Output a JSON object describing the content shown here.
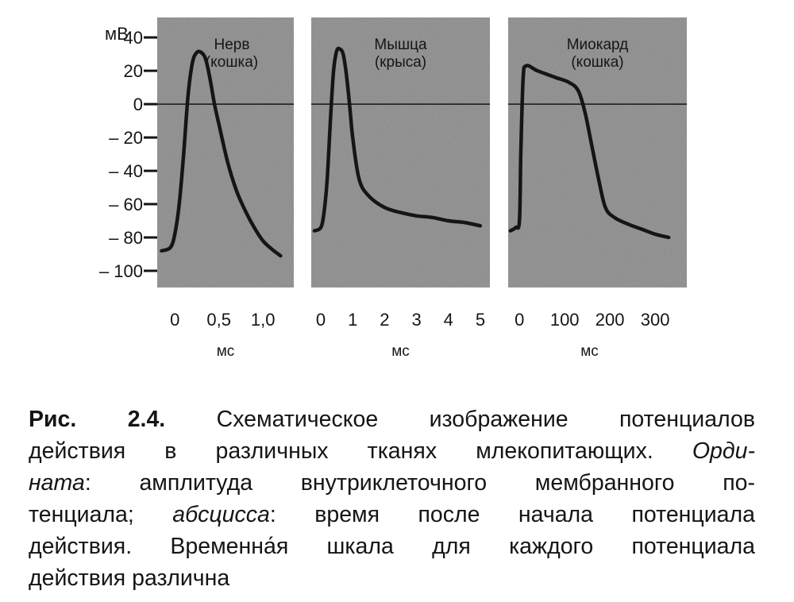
{
  "chart_data": {
    "type": "line",
    "y_unit": "мВ",
    "y_ticks": [
      "40",
      "20",
      "0",
      "– 20",
      "– 40",
      "– 60",
      "– 80",
      "– 100"
    ],
    "y_tick_values": [
      40,
      20,
      0,
      -20,
      -40,
      -60,
      -80,
      -100
    ],
    "ylim": [
      -110,
      52
    ],
    "grid": false,
    "panels": [
      {
        "title_line1": "Нерв",
        "title_line2": "(кошка)",
        "xlabel": "мс",
        "x_ticks": [
          "0",
          "0,5",
          "1,0"
        ],
        "x_tick_values": [
          0,
          0.5,
          1.0
        ],
        "xlim": [
          -0.2,
          1.35
        ],
        "series": [
          {
            "x": [
              -0.15,
              -0.05,
              0.0,
              0.05,
              0.1,
              0.15,
              0.2,
              0.25,
              0.3,
              0.35,
              0.4,
              0.45,
              0.5,
              0.6,
              0.7,
              0.8,
              0.9,
              1.0,
              1.1,
              1.2
            ],
            "y": [
              -88,
              -86,
              -78,
              -60,
              -30,
              5,
              25,
              31,
              31,
              27,
              15,
              0,
              -12,
              -35,
              -52,
              -64,
              -74,
              -82,
              -87,
              -91
            ]
          }
        ]
      },
      {
        "title_line1": "Мышца",
        "title_line2": "(крыса)",
        "xlabel": "мс",
        "x_ticks": [
          "0",
          "1",
          "2",
          "3",
          "4",
          "5"
        ],
        "x_tick_values": [
          0,
          1,
          2,
          3,
          4,
          5
        ],
        "xlim": [
          -0.3,
          5.3
        ],
        "series": [
          {
            "x": [
              -0.2,
              0.0,
              0.1,
              0.2,
              0.3,
              0.4,
              0.5,
              0.6,
              0.7,
              0.8,
              0.9,
              1.0,
              1.2,
              1.5,
              2.0,
              2.5,
              3.0,
              3.5,
              4.0,
              4.5,
              5.0
            ],
            "y": [
              -76,
              -74,
              -65,
              -45,
              -10,
              20,
              32,
              33,
              30,
              18,
              0,
              -20,
              -45,
              -55,
              -62,
              -65,
              -67,
              -68,
              -70,
              -71,
              -73
            ]
          }
        ]
      },
      {
        "title_line1": "Миокард",
        "title_line2": "(кошка)",
        "xlabel": "мс",
        "x_ticks": [
          "0",
          "100",
          "200",
          "300"
        ],
        "x_tick_values": [
          0,
          100,
          200,
          300
        ],
        "xlim": [
          -25,
          370
        ],
        "series": [
          {
            "x": [
              -20,
              -8,
              0,
              3,
              8,
              15,
              40,
              80,
              110,
              130,
              145,
              160,
              175,
              190,
              210,
              240,
              270,
              300,
              330
            ],
            "y": [
              -76,
              -74,
              -70,
              -30,
              15,
              23,
              20,
              16,
              13,
              8,
              -5,
              -25,
              -45,
              -62,
              -68,
              -72,
              -75,
              -78,
              -80
            ]
          }
        ]
      }
    ]
  },
  "caption": {
    "fig_label": "Рис. 2.4.",
    "line1_rest": "Схематическое изображение потенциалов",
    "line2": "действия в различных тканях млекопитающих.",
    "line2_italic": "Орди-",
    "line3_italic": "ната",
    "line3_rest": ": амплитуда внутриклеточного мембранного по-",
    "line4_a": "тенциала;",
    "line4_italic": "абсцисса",
    "line4_b": ": время после начала потенциала",
    "line5": "действия. Временна́я шкала для каждого потенциала",
    "line6": "действия различна"
  },
  "colors": {
    "panel_fill": "#8a8a8a",
    "trace": "#151515",
    "text": "#151515"
  }
}
